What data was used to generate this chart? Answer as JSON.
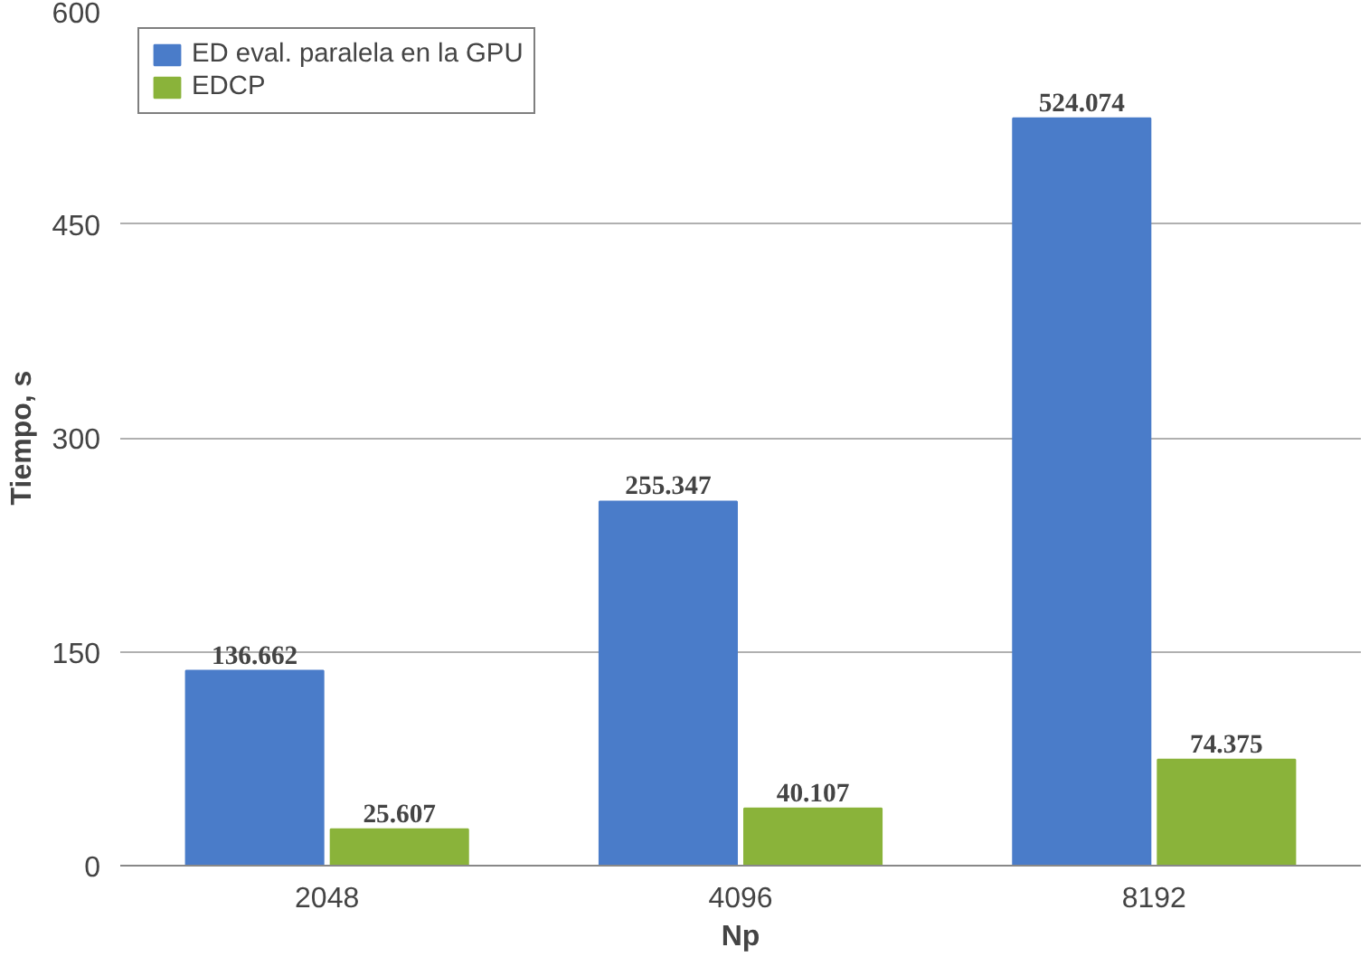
{
  "chart_data": {
    "type": "bar",
    "xlabel": "Np",
    "ylabel": "Tiempo, s",
    "categories": [
      "2048",
      "4096",
      "8192"
    ],
    "series": [
      {
        "name": "ED eval. paralela en la GPU",
        "color": "#4a7cc9",
        "values": [
          136.662,
          255.347,
          524.074
        ]
      },
      {
        "name": "EDCP",
        "color": "#8ab33a",
        "values": [
          25.607,
          40.107,
          74.375
        ]
      }
    ],
    "ylim": [
      0,
      600
    ],
    "yticks": [
      0,
      150,
      300,
      450,
      600
    ],
    "grid": "y",
    "legend": "top left",
    "data_labels": true
  }
}
